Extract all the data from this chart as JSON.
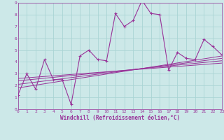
{
  "xlabel": "Windchill (Refroidissement éolien,°C)",
  "background_color": "#cce8e8",
  "grid_color": "#aad4d4",
  "line_color": "#993399",
  "xlim": [
    0,
    23
  ],
  "ylim": [
    0,
    9
  ],
  "xticks": [
    0,
    1,
    2,
    3,
    4,
    5,
    6,
    7,
    8,
    9,
    10,
    11,
    12,
    13,
    14,
    15,
    16,
    17,
    18,
    19,
    20,
    21,
    22,
    23
  ],
  "yticks": [
    0,
    1,
    2,
    3,
    4,
    5,
    6,
    7,
    8,
    9
  ],
  "main_x": [
    0,
    1,
    2,
    3,
    4,
    5,
    6,
    7,
    8,
    9,
    10,
    11,
    12,
    13,
    14,
    15,
    16,
    17,
    18,
    19,
    20,
    21,
    22,
    23
  ],
  "main_y": [
    1.2,
    3.0,
    1.7,
    4.2,
    2.5,
    2.5,
    0.4,
    4.5,
    5.0,
    4.2,
    4.1,
    8.1,
    7.0,
    7.5,
    9.2,
    8.1,
    8.0,
    3.3,
    4.8,
    4.3,
    4.2,
    5.9,
    5.3,
    4.6
  ],
  "trend1_x": [
    0,
    23
  ],
  "trend1_y": [
    1.8,
    4.5
  ],
  "trend2_x": [
    0,
    23
  ],
  "trend2_y": [
    2.1,
    4.3
  ],
  "trend3_x": [
    0,
    23
  ],
  "trend3_y": [
    2.4,
    4.1
  ],
  "trend4_x": [
    0,
    23
  ],
  "trend4_y": [
    2.6,
    3.9
  ]
}
